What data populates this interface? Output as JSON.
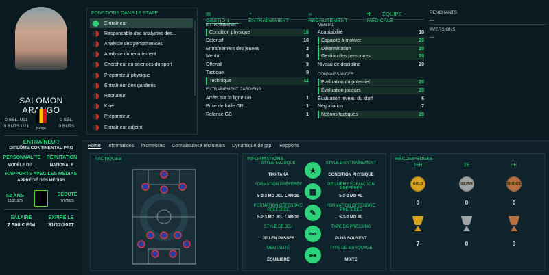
{
  "player": {
    "name": "SALOMON ARANGO",
    "left_sel": "0 SÉL. U21",
    "left_goals": "0 BUTS U21",
    "right_sel": "0 SÉL.",
    "right_goals": "0 BUTS",
    "nation": "Belge",
    "role": "ENTRAÎNEUR",
    "license": "DIPLÔME CONTINENTAL PRO",
    "personality_label": "PERSONNALITÉ",
    "personality": "MODÈLE DE ...",
    "reputation_label": "RÉPUTATION",
    "reputation": "NATIONALE",
    "media_label": "RAPPORTS AVEC LES MÉDIAS",
    "media": "APPRÉCIÉ DES MÉDIAS",
    "age": "52 ANS",
    "birth": "12/2/1975",
    "debut_label": "DÉBUTÉ",
    "debut": "7/7/2026",
    "salary_label": "SALAIRE",
    "salary": "7 500 € P/M",
    "expire_label": "EXPIRE LE",
    "expire": "31/12/2027"
  },
  "staff_roles": {
    "title": "FONCTIONS DANS LE STAFF",
    "items": [
      "Entraîneur",
      "Responsable des analystes des...",
      "Analyste des performances",
      "Analyste du recrutement",
      "Chercheur en sciences du sport",
      "Préparateur physique",
      "Entraîneur des gardiens",
      "Recruteur",
      "Kiné",
      "Préparateur",
      "Entraîneur adjoint"
    ]
  },
  "tabs": [
    "GESTION",
    "ENTRAÎNEMENT",
    "RECRUTEMENT",
    "ÉQUIPE MÉDICALE"
  ],
  "attributes": {
    "coaching_title": "ENTRAÎNEMENT",
    "coaching": [
      {
        "name": "Condition physique",
        "value": "16",
        "hl": true
      },
      {
        "name": "Défensif",
        "value": "10",
        "hl": false
      },
      {
        "name": "Entraînement des jeunes",
        "value": "2",
        "hl": false
      },
      {
        "name": "Mental",
        "value": "9",
        "hl": false
      },
      {
        "name": "Offensif",
        "value": "9",
        "hl": false
      },
      {
        "name": "Tactique",
        "value": "9",
        "hl": false
      },
      {
        "name": "Technique",
        "value": "11",
        "hl": true
      }
    ],
    "gk_title": "ENTRAÎNEMENT GARDIENS",
    "gk": [
      {
        "name": "Arrêts sur la ligne GB",
        "value": "1"
      },
      {
        "name": "Prise de balle GB",
        "value": "1"
      },
      {
        "name": "Relance GB",
        "value": "1"
      }
    ],
    "mental_title": "MENTAL",
    "mental": [
      {
        "name": "Adaptabilité",
        "value": "10",
        "hl": false
      },
      {
        "name": "Capacité à motiver",
        "value": "20",
        "hl": true
      },
      {
        "name": "Détermination",
        "value": "20",
        "hl": true
      },
      {
        "name": "Gestion des personnes",
        "value": "20",
        "hl": true
      },
      {
        "name": "Niveau de discipline",
        "value": "20",
        "hl": false
      }
    ],
    "knowledge_title": "CONNAISSANCES",
    "knowledge": [
      {
        "name": "Évaluation du potentiel",
        "value": "20",
        "hl": true
      },
      {
        "name": "Évaluation joueurs",
        "value": "20",
        "hl": true
      },
      {
        "name": "Évaluation niveau du staff",
        "value": "6",
        "hl": false
      },
      {
        "name": "Négociation",
        "value": "7",
        "hl": false
      },
      {
        "name": "Notions tactiques",
        "value": "20",
        "hl": true
      }
    ]
  },
  "sidebar_right": {
    "penchants": "PENCHANTS",
    "penchants_val": "---",
    "aversions": "AVERSIONS",
    "aversions_val": "---"
  },
  "nav": [
    "Home",
    "Informations",
    "Promesses",
    "Connaissance recruteurs",
    "Dynamique de grp.",
    "Rapports"
  ],
  "tactics_title": "TACTIQUES",
  "info": {
    "title": "INFORMATIONS",
    "rows": [
      {
        "l1": "STYLE TACTIQUE",
        "v1": "TIKI-TAKA",
        "l2": "STYLE D'ENTRAÎNEMENT",
        "v2": "CONDITION PHYSIQUE"
      },
      {
        "l1": "FORMATION PRÉFÉRÉE",
        "v1": "5-2-3 MD JEU LARGE",
        "l2": "DEUXIÈME FORMATION PRÉFÉRÉE",
        "v2": "5-3-2 MD AL"
      },
      {
        "l1": "FORMATION DÉFENSIVE PRÉFÉRÉE",
        "v1": "5-2-3 MD JEU LARGE",
        "l2": "FORMATION OFFENSIVE PRÉFÉRÉE",
        "v2": "5-3-2 MD AL"
      },
      {
        "l1": "STYLE DE JEU",
        "v1": "JEU EN PASSES",
        "l2": "TYPE DE PRESSING",
        "v2": "PLUS SOUVENT"
      },
      {
        "l1": "MENTALITÉ",
        "v1": "ÉQUILIBRÉ",
        "l2": "TYPE DE MARQUAGE",
        "v2": "MIXTE"
      }
    ]
  },
  "rewards": {
    "title": "RÉCOMPENSES",
    "heads": [
      "1ER",
      "2E",
      "3E"
    ],
    "medals": [
      "GOLD",
      "SILVER",
      "BRONZE"
    ],
    "medal_counts": [
      "0",
      "0",
      "0"
    ],
    "trophy_counts": [
      "7",
      "0",
      "0"
    ]
  }
}
